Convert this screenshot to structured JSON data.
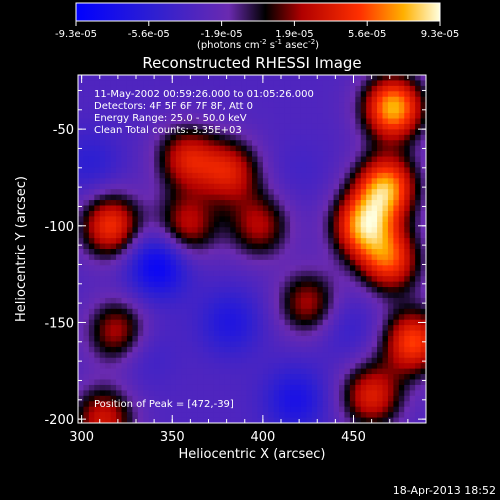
{
  "chart_data": {
    "type": "heatmap",
    "title": "Reconstructed RHESSI Image",
    "xlabel": "Heliocentric X (arcsec)",
    "ylabel": "Heliocentric Y (arcsec)",
    "xlim": [
      298,
      490
    ],
    "ylim": [
      -202,
      -22
    ],
    "x_ticks": [
      300,
      350,
      400,
      450
    ],
    "y_ticks": [
      -50,
      -100,
      -150,
      -200
    ],
    "colorbar": {
      "range": [
        -9.3e-05,
        9.3e-05
      ],
      "tick_labels": [
        "-9.3e-05",
        "-5.6e-05",
        "-1.9e-05",
        "1.9e-05",
        "5.6e-05",
        "9.3e-05"
      ],
      "unit_label": "(photons cm",
      "unit_sup1": "-2",
      "unit_mid": " s",
      "unit_sup2": "-1",
      "unit_mid2": " asec",
      "unit_sup3": "-2",
      "unit_end": ")"
    },
    "annotations": [
      "11-May-2002 00:59:26.000 to 01:05:26.000",
      "Detectors: 4F 5F 6F 7F 8F, Att 0",
      "Energy Range: 25.0 - 50.0 keV",
      "Clean     Total counts: 3.35E+03"
    ],
    "peak_label": "Position of Peak = [472,-39]",
    "sources": [
      {
        "x": 472,
        "y": -39,
        "value": 9.3e-05
      },
      {
        "x": 468,
        "y": -80,
        "value": 8.5e-05
      },
      {
        "x": 455,
        "y": -100,
        "value": 8e-05
      },
      {
        "x": 470,
        "y": -118,
        "value": 6.5e-05
      },
      {
        "x": 358,
        "y": -65,
        "value": 5e-05
      },
      {
        "x": 382,
        "y": -72,
        "value": 5e-05
      },
      {
        "x": 316,
        "y": -100,
        "value": 6.5e-05
      },
      {
        "x": 358,
        "y": -100,
        "value": 4.5e-05
      },
      {
        "x": 398,
        "y": -100,
        "value": 4e-05
      },
      {
        "x": 425,
        "y": -140,
        "value": 4e-05
      },
      {
        "x": 483,
        "y": -160,
        "value": 7e-05
      },
      {
        "x": 320,
        "y": -155,
        "value": 4.5e-05
      },
      {
        "x": 312,
        "y": -200,
        "value": 5e-05
      },
      {
        "x": 460,
        "y": -188,
        "value": 5.5e-05
      },
      {
        "x": 342,
        "y": -120,
        "value": -9e-05
      },
      {
        "x": 382,
        "y": -150,
        "value": -6.5e-05
      },
      {
        "x": 418,
        "y": -190,
        "value": -7e-05
      },
      {
        "x": 305,
        "y": -68,
        "value": -5.5e-05
      },
      {
        "x": 333,
        "y": -165,
        "value": -5e-05
      },
      {
        "x": 446,
        "y": -152,
        "value": -5e-05
      },
      {
        "x": 420,
        "y": -72,
        "value": -4e-05
      }
    ]
  },
  "footer": {
    "timestamp": "18-Apr-2013 18:52"
  }
}
